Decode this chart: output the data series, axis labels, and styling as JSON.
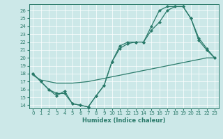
{
  "xlabel": "Humidex (Indice chaleur)",
  "bg_color": "#cce8e8",
  "line_color": "#2a7a6a",
  "xlim": [
    -0.5,
    23.5
  ],
  "ylim": [
    13.6,
    26.8
  ],
  "xticks": [
    0,
    1,
    2,
    3,
    4,
    5,
    6,
    7,
    8,
    9,
    10,
    11,
    12,
    13,
    14,
    15,
    16,
    17,
    18,
    19,
    20,
    21,
    22,
    23
  ],
  "yticks": [
    14,
    15,
    16,
    17,
    18,
    19,
    20,
    21,
    22,
    23,
    24,
    25,
    26
  ],
  "line1_x": [
    0,
    1,
    2,
    3,
    4,
    5,
    6,
    7,
    8,
    9,
    10,
    11,
    12,
    13,
    14,
    15,
    16,
    17,
    18,
    19,
    20,
    21,
    22,
    23
  ],
  "line1_y": [
    18,
    17,
    16,
    15.2,
    15.8,
    14.2,
    14,
    13.8,
    15.2,
    16.5,
    19.5,
    21.2,
    21.8,
    22,
    22,
    23.5,
    24.5,
    26,
    26.5,
    26.5,
    25,
    22.2,
    21,
    20
  ],
  "line2_x": [
    0,
    1,
    2,
    3,
    4,
    5,
    6,
    7,
    8,
    9,
    10,
    11,
    12,
    13,
    14,
    15,
    16,
    17,
    18,
    19,
    20,
    21,
    22,
    23
  ],
  "line2_y": [
    18,
    17,
    16,
    15.5,
    15.5,
    14.2,
    14,
    13.8,
    15.2,
    16.5,
    19.5,
    21.5,
    22,
    22,
    22,
    24,
    26,
    26.5,
    26.5,
    26.5,
    25,
    22.5,
    21.2,
    20
  ],
  "line3_x": [
    0,
    1,
    2,
    3,
    4,
    5,
    6,
    7,
    8,
    9,
    10,
    11,
    12,
    13,
    14,
    15,
    16,
    17,
    18,
    19,
    20,
    21,
    22,
    23
  ],
  "line3_y": [
    17.8,
    17.2,
    17.0,
    16.8,
    16.8,
    16.8,
    16.9,
    17.0,
    17.2,
    17.4,
    17.6,
    17.8,
    18.0,
    18.2,
    18.4,
    18.6,
    18.8,
    19.0,
    19.2,
    19.4,
    19.6,
    19.8,
    20.0,
    20.0
  ]
}
